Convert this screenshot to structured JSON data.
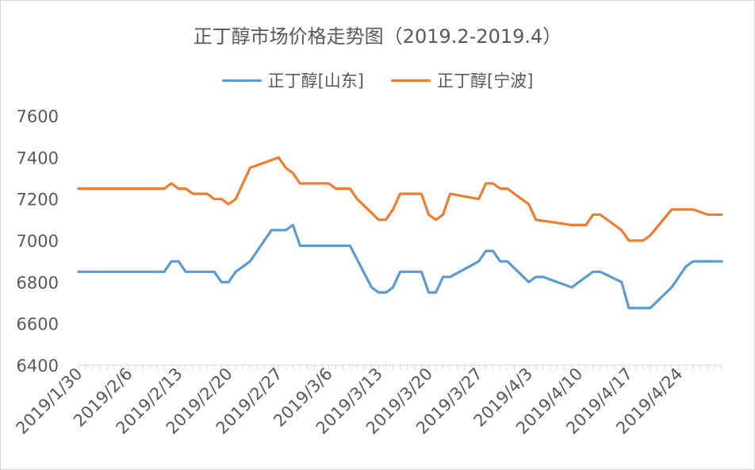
{
  "chart_data": {
    "type": "line",
    "title": "正丁醇市场价格走势图（2019.2-2019.4）",
    "xlabel": "",
    "ylabel": "",
    "ylim": [
      6400,
      7600
    ],
    "yticks": [
      7600,
      7400,
      7200,
      7000,
      6800,
      6600,
      6400
    ],
    "xlim": [
      "2019-01-30",
      "2019-04-30"
    ],
    "xtick_labels": [
      "2019/1/30",
      "2019/2/6",
      "2019/2/13",
      "2019/2/20",
      "2019/2/27",
      "2019/3/6",
      "2019/3/13",
      "2019/3/20",
      "2019/3/27",
      "2019/4/3",
      "2019/4/10",
      "2019/4/17",
      "2019/4/24"
    ],
    "legend_position": "top",
    "grid": false,
    "series": [
      {
        "name": "正丁醇[山东]",
        "color": "#5B9BD5",
        "points": [
          [
            "2019-01-30",
            6850
          ],
          [
            "2019-02-11",
            6850
          ],
          [
            "2019-02-12",
            6900
          ],
          [
            "2019-02-13",
            6900
          ],
          [
            "2019-02-14",
            6850
          ],
          [
            "2019-02-18",
            6850
          ],
          [
            "2019-02-19",
            6800
          ],
          [
            "2019-02-20",
            6800
          ],
          [
            "2019-02-21",
            6850
          ],
          [
            "2019-02-23",
            6900
          ],
          [
            "2019-02-25",
            7000
          ],
          [
            "2019-02-26",
            7050
          ],
          [
            "2019-02-28",
            7050
          ],
          [
            "2019-03-01",
            7075
          ],
          [
            "2019-03-02",
            6975
          ],
          [
            "2019-03-09",
            6975
          ],
          [
            "2019-03-12",
            6775
          ],
          [
            "2019-03-13",
            6750
          ],
          [
            "2019-03-14",
            6750
          ],
          [
            "2019-03-15",
            6775
          ],
          [
            "2019-03-16",
            6850
          ],
          [
            "2019-03-19",
            6850
          ],
          [
            "2019-03-20",
            6750
          ],
          [
            "2019-03-21",
            6750
          ],
          [
            "2019-03-22",
            6825
          ],
          [
            "2019-03-23",
            6825
          ],
          [
            "2019-03-27",
            6900
          ],
          [
            "2019-03-28",
            6950
          ],
          [
            "2019-03-29",
            6950
          ],
          [
            "2019-03-30",
            6900
          ],
          [
            "2019-03-31",
            6900
          ],
          [
            "2019-04-03",
            6800
          ],
          [
            "2019-04-04",
            6825
          ],
          [
            "2019-04-05",
            6825
          ],
          [
            "2019-04-09",
            6775
          ],
          [
            "2019-04-12",
            6850
          ],
          [
            "2019-04-13",
            6850
          ],
          [
            "2019-04-16",
            6800
          ],
          [
            "2019-04-17",
            6675
          ],
          [
            "2019-04-20",
            6675
          ],
          [
            "2019-04-23",
            6775
          ],
          [
            "2019-04-25",
            6875
          ],
          [
            "2019-04-26",
            6900
          ],
          [
            "2019-04-30",
            6900
          ]
        ]
      },
      {
        "name": "正丁醇[宁波]",
        "color": "#ED7D31",
        "points": [
          [
            "2019-01-30",
            7250
          ],
          [
            "2019-02-11",
            7250
          ],
          [
            "2019-02-12",
            7275
          ],
          [
            "2019-02-13",
            7250
          ],
          [
            "2019-02-14",
            7250
          ],
          [
            "2019-02-15",
            7225
          ],
          [
            "2019-02-17",
            7225
          ],
          [
            "2019-02-18",
            7200
          ],
          [
            "2019-02-19",
            7200
          ],
          [
            "2019-02-20",
            7175
          ],
          [
            "2019-02-21",
            7200
          ],
          [
            "2019-02-23",
            7350
          ],
          [
            "2019-02-25",
            7375
          ],
          [
            "2019-02-27",
            7400
          ],
          [
            "2019-02-28",
            7350
          ],
          [
            "2019-03-01",
            7325
          ],
          [
            "2019-03-02",
            7275
          ],
          [
            "2019-03-03",
            7275
          ],
          [
            "2019-03-06",
            7275
          ],
          [
            "2019-03-07",
            7250
          ],
          [
            "2019-03-09",
            7250
          ],
          [
            "2019-03-10",
            7200
          ],
          [
            "2019-03-13",
            7100
          ],
          [
            "2019-03-14",
            7100
          ],
          [
            "2019-03-15",
            7150
          ],
          [
            "2019-03-16",
            7225
          ],
          [
            "2019-03-19",
            7225
          ],
          [
            "2019-03-20",
            7125
          ],
          [
            "2019-03-21",
            7100
          ],
          [
            "2019-03-22",
            7125
          ],
          [
            "2019-03-23",
            7225
          ],
          [
            "2019-03-27",
            7200
          ],
          [
            "2019-03-28",
            7275
          ],
          [
            "2019-03-29",
            7275
          ],
          [
            "2019-03-30",
            7250
          ],
          [
            "2019-03-31",
            7250
          ],
          [
            "2019-04-03",
            7175
          ],
          [
            "2019-04-04",
            7100
          ],
          [
            "2019-04-09",
            7075
          ],
          [
            "2019-04-11",
            7075
          ],
          [
            "2019-04-12",
            7125
          ],
          [
            "2019-04-13",
            7125
          ],
          [
            "2019-04-16",
            7050
          ],
          [
            "2019-04-17",
            7000
          ],
          [
            "2019-04-19",
            7000
          ],
          [
            "2019-04-20",
            7025
          ],
          [
            "2019-04-23",
            7150
          ],
          [
            "2019-04-25",
            7150
          ],
          [
            "2019-04-26",
            7150
          ],
          [
            "2019-04-28",
            7125
          ],
          [
            "2019-04-30",
            7125
          ]
        ]
      }
    ]
  }
}
